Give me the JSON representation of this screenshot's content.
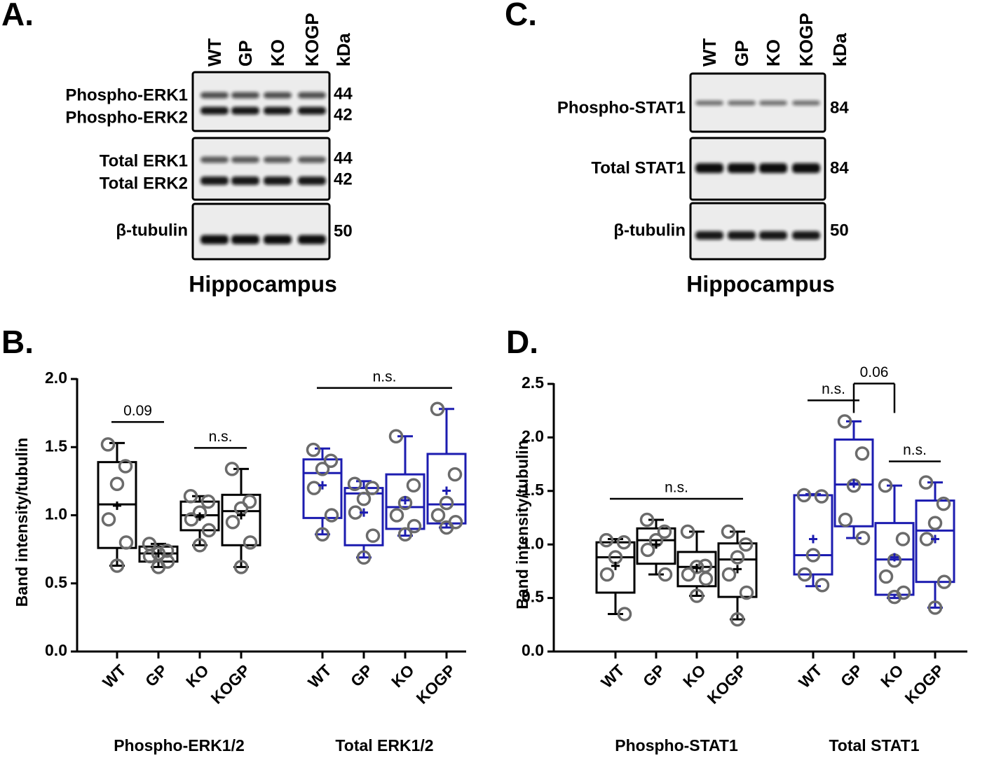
{
  "panels": [
    {
      "letter": "A.",
      "lanes": [
        "WT",
        "GP",
        "KO",
        "KOGP"
      ],
      "kda_header": "kDa",
      "blots": [
        {
          "labels": [
            "Phospho-ERK1",
            "Phospho-ERK2"
          ],
          "kda": [
            44,
            42
          ]
        },
        {
          "labels": [
            "Total ERK1",
            "Total ERK2"
          ],
          "kda": [
            44,
            42
          ]
        },
        {
          "labels": [
            "β-tubulin"
          ],
          "kda": [
            50
          ]
        }
      ],
      "caption": "Hippocampus"
    },
    {
      "letter": "C.",
      "lanes": [
        "WT",
        "GP",
        "KO",
        "KOGP"
      ],
      "kda_header": "kDa",
      "blots": [
        {
          "labels": [
            "Phospho-STAT1"
          ],
          "kda": [
            84
          ]
        },
        {
          "labels": [
            "Total STAT1"
          ],
          "kda": [
            84
          ]
        },
        {
          "labels": [
            "β-tubulin"
          ],
          "kda": [
            50
          ]
        }
      ],
      "caption": "Hippocampus"
    }
  ],
  "chart_data": [
    {
      "type": "box",
      "letter": "B.",
      "ylabel": "Band intensity/tubulin",
      "ylim": [
        0,
        2
      ],
      "yticks": [
        {
          "value": 0,
          "label": "0.0"
        },
        0.5,
        {
          "value": 1,
          "label": "1.0"
        },
        1.5,
        {
          "value": 2,
          "label": "2.0"
        }
      ],
      "categories": [
        "WT",
        "GP",
        "KO",
        "KOGP"
      ],
      "point_color": "#6b6b6b",
      "series": [
        {
          "name": "Phospho-ERK1/2",
          "color": "#000000",
          "boxes": [
            {
              "min": 0.63,
              "q1": 0.76,
              "median": 1.08,
              "q3": 1.39,
              "max": 1.53,
              "mean": 1.07,
              "points": [
                1.52,
                1.36,
                1.23,
                0.97,
                0.8,
                0.63
              ]
            },
            {
              "min": 0.62,
              "q1": 0.66,
              "median": 0.72,
              "q3": 0.77,
              "max": 0.79,
              "mean": 0.72,
              "points": [
                0.79,
                0.74,
                0.72,
                0.7,
                0.66,
                0.62
              ]
            },
            {
              "min": 0.78,
              "q1": 0.89,
              "median": 1.0,
              "q3": 1.1,
              "max": 1.14,
              "mean": 0.99,
              "points": [
                1.14,
                1.1,
                1.02,
                0.97,
                0.89,
                0.78
              ]
            },
            {
              "min": 0.62,
              "q1": 0.78,
              "median": 1.03,
              "q3": 1.15,
              "max": 1.34,
              "mean": 1.0,
              "points": [
                1.34,
                1.1,
                1.05,
                0.95,
                0.8,
                0.62
              ]
            }
          ],
          "brackets": [
            {
              "between": [
                "WT",
                "GP"
              ],
              "label": "0.09"
            },
            {
              "between": [
                "KO",
                "KOGP"
              ],
              "label": "n.s."
            }
          ]
        },
        {
          "name": "Total ERK1/2",
          "color": "#1c1cb0",
          "boxes": [
            {
              "min": 0.86,
              "q1": 0.98,
              "median": 1.31,
              "q3": 1.41,
              "max": 1.49,
              "mean": 1.22,
              "points": [
                1.48,
                1.4,
                1.34,
                1.2,
                1.0,
                0.86
              ]
            },
            {
              "min": 0.69,
              "q1": 0.78,
              "median": 1.16,
              "q3": 1.2,
              "max": 1.25,
              "mean": 1.02,
              "points": [
                1.23,
                1.2,
                1.12,
                1.02,
                0.85,
                0.69
              ]
            },
            {
              "min": 0.85,
              "q1": 0.9,
              "median": 1.06,
              "q3": 1.3,
              "max": 1.58,
              "mean": 1.11,
              "points": [
                1.58,
                1.22,
                1.09,
                1.0,
                0.92,
                0.86
              ]
            },
            {
              "min": 0.91,
              "q1": 0.94,
              "median": 1.08,
              "q3": 1.45,
              "max": 1.78,
              "mean": 1.18,
              "points": [
                1.78,
                1.3,
                1.09,
                1.0,
                0.95,
                0.91
              ]
            }
          ],
          "brackets": [
            {
              "between": [
                "WT",
                "KOGP"
              ],
              "label": "n.s."
            }
          ]
        }
      ]
    },
    {
      "type": "box",
      "letter": "D.",
      "ylabel": "Band intensity/tubulin",
      "ylim": [
        0,
        2.5
      ],
      "yticks": [
        {
          "value": 0,
          "label": "0.0"
        },
        0.5,
        {
          "value": 1,
          "label": "1.0"
        },
        1.5,
        {
          "value": 2,
          "label": "2.0"
        },
        2.5
      ],
      "categories": [
        "WT",
        "GP",
        "KO",
        "KOGP"
      ],
      "point_color": "#6b6b6b",
      "series": [
        {
          "name": "Phospho-STAT1",
          "color": "#000000",
          "boxes": [
            {
              "min": 0.35,
              "q1": 0.55,
              "median": 0.88,
              "q3": 1.02,
              "max": 1.05,
              "mean": 0.8,
              "points": [
                1.04,
                1.02,
                0.88,
                0.72,
                0.35
              ]
            },
            {
              "min": 0.72,
              "q1": 0.82,
              "median": 1.04,
              "q3": 1.15,
              "max": 1.23,
              "mean": 1.0,
              "points": [
                1.23,
                1.12,
                1.04,
                0.95,
                0.72
              ]
            },
            {
              "min": 0.52,
              "q1": 0.61,
              "median": 0.79,
              "q3": 0.93,
              "max": 1.12,
              "mean": 0.78,
              "points": [
                1.12,
                0.8,
                0.79,
                0.72,
                0.68,
                0.52
              ]
            },
            {
              "min": 0.3,
              "q1": 0.51,
              "median": 0.86,
              "q3": 1.01,
              "max": 1.12,
              "mean": 0.77,
              "points": [
                1.12,
                1.0,
                0.88,
                0.72,
                0.55,
                0.3
              ]
            }
          ],
          "brackets": [
            {
              "between": [
                "WT",
                "KOGP"
              ],
              "label": "n.s."
            }
          ]
        },
        {
          "name": "Total STAT1",
          "color": "#1c1cb0",
          "boxes": [
            {
              "min": 0.61,
              "q1": 0.72,
              "median": 0.9,
              "q3": 1.46,
              "max": 1.47,
              "mean": 1.05,
              "points": [
                1.46,
                1.45,
                0.9,
                0.72,
                0.62
              ]
            },
            {
              "min": 1.06,
              "q1": 1.17,
              "median": 1.56,
              "q3": 1.98,
              "max": 2.15,
              "mean": 1.57,
              "points": [
                2.15,
                1.85,
                1.55,
                1.23,
                1.06
              ]
            },
            {
              "min": 0.5,
              "q1": 0.53,
              "median": 0.86,
              "q3": 1.2,
              "max": 1.55,
              "mean": 0.88,
              "points": [
                1.55,
                1.05,
                0.85,
                0.7,
                0.55,
                0.51
              ]
            },
            {
              "min": 0.41,
              "q1": 0.65,
              "median": 1.13,
              "q3": 1.41,
              "max": 1.58,
              "mean": 1.05,
              "points": [
                1.58,
                1.38,
                1.2,
                1.05,
                0.65,
                0.41
              ]
            }
          ],
          "brackets": [
            {
              "between": [
                "WT",
                "GP"
              ],
              "label": "n.s."
            },
            {
              "between": [
                "GP",
                "KO"
              ],
              "label": "0.06"
            },
            {
              "between": [
                "KO",
                "KOGP"
              ],
              "label": "n.s."
            }
          ]
        }
      ]
    }
  ]
}
